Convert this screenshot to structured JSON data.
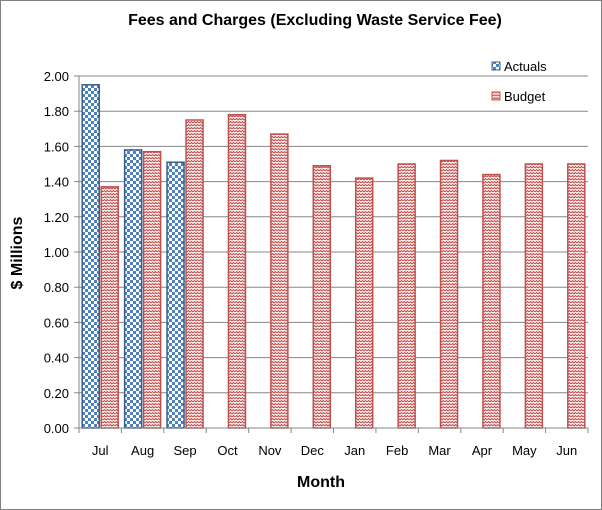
{
  "chart_data": {
    "type": "bar",
    "title": "Fees and Charges (Excluding  Waste Service Fee)",
    "xlabel": "Month",
    "ylabel": "$ Millions",
    "categories": [
      "Jul",
      "Aug",
      "Sep",
      "Oct",
      "Nov",
      "Dec",
      "Jan",
      "Feb",
      "Mar",
      "Apr",
      "May",
      "Jun"
    ],
    "ylim": [
      0,
      2.0
    ],
    "yticks": [
      "0.00",
      "0.20",
      "0.40",
      "0.60",
      "0.80",
      "1.00",
      "1.20",
      "1.40",
      "1.60",
      "1.80",
      "2.00"
    ],
    "ytick_values": [
      0,
      0.2,
      0.4,
      0.6,
      0.8,
      1.0,
      1.2,
      1.4,
      1.6,
      1.8,
      2.0
    ],
    "grid": true,
    "legend_position": "top-right",
    "series": [
      {
        "name": "Actuals",
        "color": "#4F81BD",
        "pattern": "checkerboard",
        "values": [
          1.95,
          1.58,
          1.51,
          null,
          null,
          null,
          null,
          null,
          null,
          null,
          null,
          null
        ]
      },
      {
        "name": "Budget",
        "color": "#C0504D",
        "pattern": "zigzag",
        "values": [
          1.37,
          1.57,
          1.75,
          1.78,
          1.67,
          1.49,
          1.42,
          1.5,
          1.52,
          1.44,
          1.5,
          1.5
        ]
      }
    ]
  }
}
